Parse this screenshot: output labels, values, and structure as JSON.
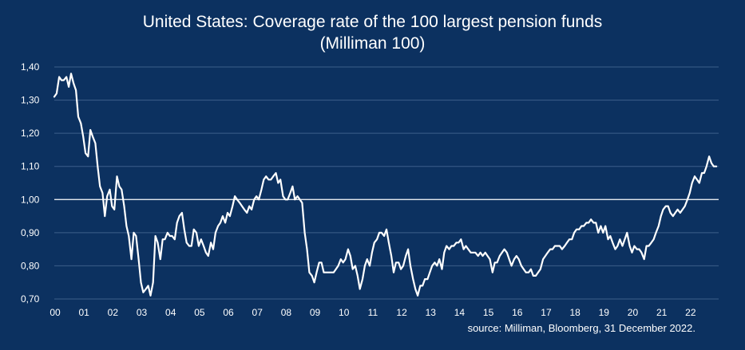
{
  "title_line1": "United States: Coverage rate of the 100 largest pension funds",
  "title_line2": "(Milliman 100)",
  "source": "source: Milliman, Bloomberg, 31 December 2022.",
  "colors": {
    "background": "#0c3160",
    "line": "#ffffff",
    "gridline": "#3d5f8a",
    "reference_line": "#ffffff",
    "text": "#ffffff"
  },
  "chart_data": {
    "type": "line",
    "title": "United States: Coverage rate of the 100 largest pension funds (Milliman 100)",
    "xlabel": "",
    "ylabel": "",
    "x_range": [
      2000.0,
      2023.0
    ],
    "ylim": [
      0.7,
      1.4
    ],
    "y_ticks": [
      "1,40",
      "1,30",
      "1,20",
      "1,10",
      "1,00",
      "0,90",
      "0,80",
      "0,70"
    ],
    "y_tick_values": [
      1.4,
      1.3,
      1.2,
      1.1,
      1.0,
      0.9,
      0.8,
      0.7
    ],
    "x_ticks": [
      "00",
      "01",
      "02",
      "03",
      "04",
      "05",
      "06",
      "07",
      "08",
      "09",
      "10",
      "11",
      "12",
      "13",
      "14",
      "15",
      "16",
      "17",
      "18",
      "19",
      "20",
      "21",
      "22"
    ],
    "x_tick_values": [
      2000,
      2001,
      2002,
      2003,
      2004,
      2005,
      2006,
      2007,
      2008,
      2009,
      2010,
      2011,
      2012,
      2013,
      2014,
      2015,
      2016,
      2017,
      2018,
      2019,
      2020,
      2021,
      2022
    ],
    "reference_line": 1.0,
    "grid": true,
    "series": [
      {
        "name": "",
        "x": [
          2000.0,
          2000.08,
          2000.17,
          2000.25,
          2000.33,
          2000.42,
          2000.5,
          2000.58,
          2000.67,
          2000.75,
          2000.83,
          2000.92,
          2001.0,
          2001.08,
          2001.17,
          2001.25,
          2001.33,
          2001.42,
          2001.5,
          2001.58,
          2001.67,
          2001.75,
          2001.83,
          2001.92,
          2002.0,
          2002.08,
          2002.17,
          2002.25,
          2002.33,
          2002.42,
          2002.5,
          2002.58,
          2002.67,
          2002.75,
          2002.83,
          2002.92,
          2003.0,
          2003.08,
          2003.17,
          2003.25,
          2003.33,
          2003.42,
          2003.5,
          2003.58,
          2003.67,
          2003.75,
          2003.83,
          2003.92,
          2004.0,
          2004.08,
          2004.17,
          2004.25,
          2004.33,
          2004.42,
          2004.5,
          2004.58,
          2004.67,
          2004.75,
          2004.83,
          2004.92,
          2005.0,
          2005.08,
          2005.17,
          2005.25,
          2005.33,
          2005.42,
          2005.5,
          2005.58,
          2005.67,
          2005.75,
          2005.83,
          2005.92,
          2006.0,
          2006.08,
          2006.17,
          2006.25,
          2006.33,
          2006.42,
          2006.5,
          2006.58,
          2006.67,
          2006.75,
          2006.83,
          2006.92,
          2007.0,
          2007.08,
          2007.17,
          2007.25,
          2007.33,
          2007.42,
          2007.5,
          2007.58,
          2007.67,
          2007.75,
          2007.83,
          2007.92,
          2008.0,
          2008.08,
          2008.17,
          2008.25,
          2008.33,
          2008.42,
          2008.5,
          2008.58,
          2008.67,
          2008.75,
          2008.83,
          2008.92,
          2009.0,
          2009.08,
          2009.17,
          2009.25,
          2009.33,
          2009.42,
          2009.5,
          2009.58,
          2009.67,
          2009.75,
          2009.83,
          2009.92,
          2010.0,
          2010.08,
          2010.17,
          2010.25,
          2010.33,
          2010.42,
          2010.5,
          2010.58,
          2010.67,
          2010.75,
          2010.83,
          2010.92,
          2011.0,
          2011.08,
          2011.17,
          2011.25,
          2011.33,
          2011.42,
          2011.5,
          2011.58,
          2011.67,
          2011.75,
          2011.83,
          2011.92,
          2012.0,
          2012.08,
          2012.17,
          2012.25,
          2012.33,
          2012.42,
          2012.5,
          2012.58,
          2012.67,
          2012.75,
          2012.83,
          2012.92,
          2013.0,
          2013.08,
          2013.17,
          2013.25,
          2013.33,
          2013.42,
          2013.5,
          2013.58,
          2013.67,
          2013.75,
          2013.83,
          2013.92,
          2014.0,
          2014.08,
          2014.17,
          2014.25,
          2014.33,
          2014.42,
          2014.5,
          2014.58,
          2014.67,
          2014.75,
          2014.83,
          2014.92,
          2015.0,
          2015.08,
          2015.17,
          2015.25,
          2015.33,
          2015.42,
          2015.5,
          2015.58,
          2015.67,
          2015.75,
          2015.83,
          2015.92,
          2016.0,
          2016.08,
          2016.17,
          2016.25,
          2016.33,
          2016.42,
          2016.5,
          2016.58,
          2016.67,
          2016.75,
          2016.83,
          2016.92,
          2017.0,
          2017.08,
          2017.17,
          2017.25,
          2017.33,
          2017.42,
          2017.5,
          2017.58,
          2017.67,
          2017.75,
          2017.83,
          2017.92,
          2018.0,
          2018.08,
          2018.17,
          2018.25,
          2018.33,
          2018.42,
          2018.5,
          2018.58,
          2018.67,
          2018.75,
          2018.83,
          2018.92,
          2019.0,
          2019.08,
          2019.17,
          2019.25,
          2019.33,
          2019.42,
          2019.5,
          2019.58,
          2019.67,
          2019.75,
          2019.83,
          2019.92,
          2020.0,
          2020.08,
          2020.17,
          2020.25,
          2020.33,
          2020.42,
          2020.5,
          2020.58,
          2020.67,
          2020.75,
          2020.83,
          2020.92,
          2021.0,
          2021.08,
          2021.17,
          2021.25,
          2021.33,
          2021.42,
          2021.5,
          2021.58,
          2021.67,
          2021.75,
          2021.83,
          2021.92,
          2022.0,
          2022.08,
          2022.17,
          2022.25,
          2022.33,
          2022.42,
          2022.5,
          2022.58,
          2022.67,
          2022.75,
          2022.83,
          2022.92
        ],
        "values": [
          1.31,
          1.32,
          1.37,
          1.36,
          1.36,
          1.37,
          1.34,
          1.38,
          1.35,
          1.33,
          1.25,
          1.23,
          1.19,
          1.14,
          1.13,
          1.21,
          1.19,
          1.17,
          1.1,
          1.04,
          1.02,
          0.95,
          1.01,
          1.03,
          0.98,
          0.97,
          1.07,
          1.04,
          1.03,
          0.98,
          0.92,
          0.89,
          0.82,
          0.9,
          0.89,
          0.82,
          0.75,
          0.72,
          0.73,
          0.74,
          0.71,
          0.75,
          0.89,
          0.87,
          0.82,
          0.88,
          0.88,
          0.9,
          0.89,
          0.89,
          0.88,
          0.93,
          0.95,
          0.96,
          0.91,
          0.87,
          0.86,
          0.86,
          0.91,
          0.9,
          0.86,
          0.88,
          0.86,
          0.84,
          0.83,
          0.87,
          0.85,
          0.9,
          0.92,
          0.93,
          0.95,
          0.93,
          0.96,
          0.95,
          0.98,
          1.01,
          1.0,
          0.99,
          0.98,
          0.97,
          0.96,
          0.98,
          0.97,
          1.0,
          1.01,
          1.0,
          1.03,
          1.06,
          1.07,
          1.06,
          1.06,
          1.07,
          1.08,
          1.05,
          1.06,
          1.01,
          1.0,
          1.0,
          1.02,
          1.04,
          1.0,
          1.01,
          1.0,
          0.99,
          0.9,
          0.85,
          0.78,
          0.77,
          0.75,
          0.78,
          0.81,
          0.81,
          0.78,
          0.78,
          0.78,
          0.78,
          0.78,
          0.79,
          0.8,
          0.82,
          0.81,
          0.82,
          0.85,
          0.83,
          0.79,
          0.8,
          0.77,
          0.73,
          0.76,
          0.8,
          0.82,
          0.8,
          0.84,
          0.87,
          0.88,
          0.9,
          0.9,
          0.89,
          0.91,
          0.87,
          0.83,
          0.78,
          0.81,
          0.81,
          0.79,
          0.8,
          0.83,
          0.85,
          0.8,
          0.76,
          0.73,
          0.71,
          0.74,
          0.74,
          0.76,
          0.76,
          0.78,
          0.8,
          0.81,
          0.8,
          0.82,
          0.79,
          0.84,
          0.86,
          0.85,
          0.86,
          0.86,
          0.87,
          0.87,
          0.88,
          0.85,
          0.86,
          0.85,
          0.84,
          0.84,
          0.84,
          0.83,
          0.84,
          0.83,
          0.84,
          0.83,
          0.82,
          0.78,
          0.81,
          0.81,
          0.83,
          0.84,
          0.85,
          0.84,
          0.82,
          0.8,
          0.82,
          0.83,
          0.82,
          0.8,
          0.79,
          0.78,
          0.78,
          0.79,
          0.77,
          0.77,
          0.78,
          0.79,
          0.82,
          0.83,
          0.84,
          0.85,
          0.85,
          0.86,
          0.86,
          0.86,
          0.85,
          0.86,
          0.87,
          0.88,
          0.88,
          0.9,
          0.91,
          0.91,
          0.92,
          0.92,
          0.93,
          0.93,
          0.94,
          0.93,
          0.93,
          0.9,
          0.92,
          0.9,
          0.92,
          0.88,
          0.89,
          0.87,
          0.85,
          0.86,
          0.88,
          0.86,
          0.88,
          0.9,
          0.86,
          0.84,
          0.86,
          0.85,
          0.85,
          0.84,
          0.82,
          0.86,
          0.86,
          0.87,
          0.88,
          0.9,
          0.92,
          0.95,
          0.97,
          0.98,
          0.98,
          0.96,
          0.95,
          0.96,
          0.97,
          0.96,
          0.97,
          0.98,
          1.0,
          1.02,
          1.05,
          1.07,
          1.06,
          1.05,
          1.08,
          1.08,
          1.1,
          1.13,
          1.11,
          1.1,
          1.1
        ]
      }
    ]
  }
}
